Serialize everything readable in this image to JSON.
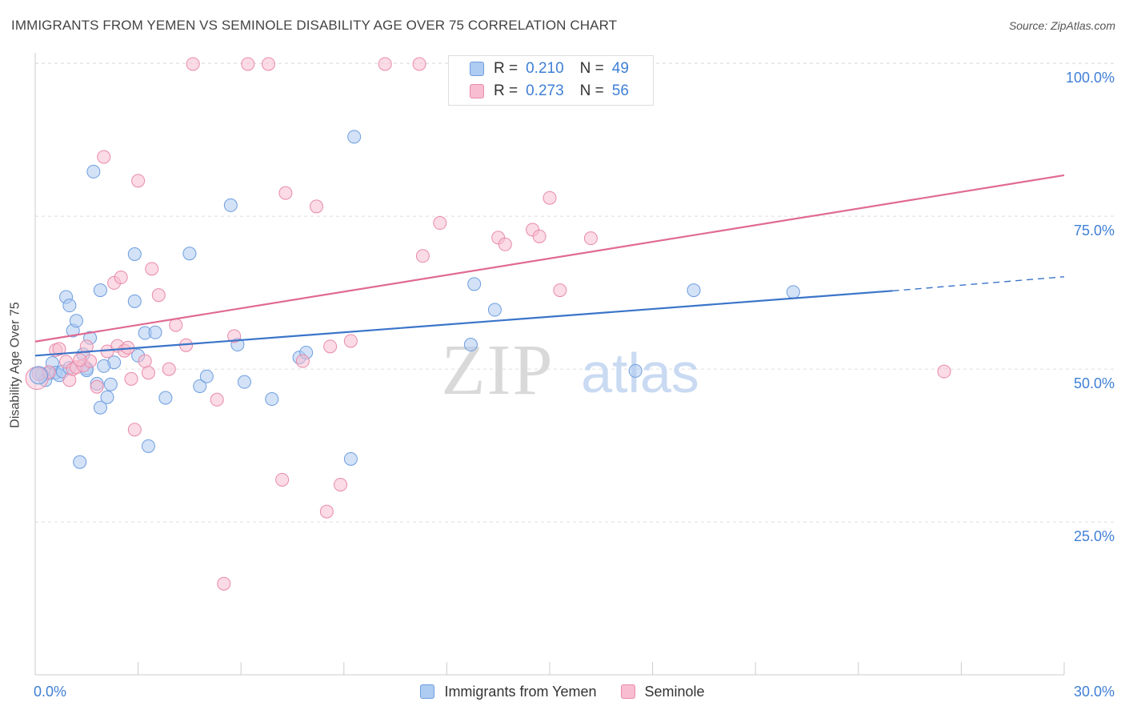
{
  "title": "IMMIGRANTS FROM YEMEN VS SEMINOLE DISABILITY AGE OVER 75 CORRELATION CHART",
  "source": "Source: ZipAtlas.com",
  "watermark": {
    "zip": "ZIP",
    "atlas": "atlas"
  },
  "legend": {
    "r_label": "R =",
    "n_label": "N =",
    "rows": [
      {
        "r": "0.210",
        "n": "49",
        "fill": "#aecbf1",
        "stroke": "#6d9de0"
      },
      {
        "r": "0.273",
        "n": "56",
        "fill": "#f8bdd0",
        "stroke": "#e88aaa"
      }
    ]
  },
  "colors": {
    "blue_line": "#3a74c9",
    "pink_line": "#e06a93",
    "tick_text": "#3f7fd6",
    "grid": "#dddddd"
  },
  "chart_data": {
    "type": "scatter",
    "title": "IMMIGRANTS FROM YEMEN VS SEMINOLE DISABILITY AGE OVER 75 CORRELATION CHART",
    "xlabel": "",
    "ylabel": "Disability Age Over 75",
    "xlim": [
      0,
      30
    ],
    "ylim": [
      0,
      105
    ],
    "x_ticks": [
      "0.0%",
      "30.0%"
    ],
    "y_ticks": [
      {
        "value": 25,
        "label": "25.0%"
      },
      {
        "value": 50,
        "label": "50.0%"
      },
      {
        "value": 75,
        "label": "75.0%"
      },
      {
        "value": 100,
        "label": "100.0%"
      }
    ],
    "grid": true,
    "legend_position": "bottom",
    "series": [
      {
        "name": "Immigrants from Yemen",
        "color": "#6d9de0",
        "fill": "#aecbf1",
        "trend": {
          "x_start": 0.0,
          "y_start": 52.2,
          "x_end": 25.0,
          "y_end": 62.8,
          "dashed_to_x": 30.0,
          "dashed_to_y": 65.1
        },
        "points": [
          [
            0.2,
            49.2
          ],
          [
            0.4,
            49.3
          ],
          [
            0.5,
            51.0
          ],
          [
            0.6,
            49.4
          ],
          [
            0.7,
            49.0
          ],
          [
            0.9,
            61.8
          ],
          [
            1.0,
            60.4
          ],
          [
            1.1,
            56.3
          ],
          [
            1.2,
            57.9
          ],
          [
            1.3,
            34.8
          ],
          [
            1.4,
            52.4
          ],
          [
            1.5,
            50.1
          ],
          [
            1.6,
            55.1
          ],
          [
            1.7,
            82.3
          ],
          [
            1.8,
            47.6
          ],
          [
            1.9,
            43.7
          ],
          [
            1.9,
            62.9
          ],
          [
            2.1,
            45.4
          ],
          [
            2.2,
            47.5
          ],
          [
            2.3,
            51.1
          ],
          [
            2.9,
            61.1
          ],
          [
            2.9,
            68.8
          ],
          [
            3.0,
            52.2
          ],
          [
            3.2,
            55.9
          ],
          [
            3.3,
            37.4
          ],
          [
            3.8,
            45.3
          ],
          [
            4.5,
            68.9
          ],
          [
            4.8,
            47.2
          ],
          [
            5.0,
            48.8
          ],
          [
            5.7,
            76.8
          ],
          [
            5.9,
            54.0
          ],
          [
            6.1,
            47.9
          ],
          [
            6.9,
            45.1
          ],
          [
            7.7,
            51.9
          ],
          [
            7.9,
            52.7
          ],
          [
            9.2,
            35.3
          ],
          [
            9.3,
            88.0
          ],
          [
            12.7,
            54.0
          ],
          [
            12.8,
            63.9
          ],
          [
            13.4,
            59.7
          ],
          [
            17.5,
            49.7
          ],
          [
            19.2,
            62.9
          ],
          [
            22.1,
            62.6
          ],
          [
            0.3,
            48.2
          ],
          [
            0.8,
            49.6
          ],
          [
            1.0,
            50.2
          ],
          [
            1.5,
            49.8
          ],
          [
            2.0,
            50.5
          ],
          [
            3.5,
            56.0
          ]
        ]
      },
      {
        "name": "Seminole",
        "color": "#e88aaa",
        "fill": "#f8bdd0",
        "trend": {
          "x_start": 0.0,
          "y_start": 54.5,
          "x_end": 30.0,
          "y_end": 81.7
        },
        "points": [
          [
            0.1,
            49.2
          ],
          [
            0.6,
            53.1
          ],
          [
            0.7,
            53.3
          ],
          [
            0.9,
            51.2
          ],
          [
            1.0,
            48.2
          ],
          [
            1.1,
            50.0
          ],
          [
            1.2,
            50.3
          ],
          [
            1.4,
            50.6
          ],
          [
            1.5,
            53.7
          ],
          [
            1.6,
            51.3
          ],
          [
            1.8,
            47.1
          ],
          [
            2.0,
            84.7
          ],
          [
            2.1,
            52.9
          ],
          [
            2.3,
            64.1
          ],
          [
            2.4,
            53.8
          ],
          [
            2.5,
            65.0
          ],
          [
            2.6,
            53.0
          ],
          [
            2.8,
            48.4
          ],
          [
            2.9,
            40.1
          ],
          [
            3.0,
            80.8
          ],
          [
            3.2,
            51.3
          ],
          [
            3.3,
            49.4
          ],
          [
            3.4,
            66.4
          ],
          [
            3.6,
            62.1
          ],
          [
            3.9,
            50.0
          ],
          [
            4.1,
            57.2
          ],
          [
            4.4,
            53.9
          ],
          [
            4.6,
            99.9
          ],
          [
            5.3,
            45.0
          ],
          [
            5.5,
            14.9
          ],
          [
            5.8,
            55.4
          ],
          [
            6.2,
            99.9
          ],
          [
            6.8,
            99.9
          ],
          [
            7.2,
            31.9
          ],
          [
            7.3,
            78.8
          ],
          [
            7.8,
            51.3
          ],
          [
            8.2,
            76.6
          ],
          [
            8.5,
            26.7
          ],
          [
            8.6,
            53.7
          ],
          [
            8.9,
            31.1
          ],
          [
            9.2,
            54.6
          ],
          [
            10.2,
            99.9
          ],
          [
            11.2,
            99.9
          ],
          [
            11.3,
            68.5
          ],
          [
            11.8,
            73.9
          ],
          [
            13.5,
            71.5
          ],
          [
            13.7,
            70.4
          ],
          [
            14.5,
            72.8
          ],
          [
            14.7,
            71.7
          ],
          [
            15.0,
            78.0
          ],
          [
            15.3,
            62.9
          ],
          [
            16.2,
            71.4
          ],
          [
            26.5,
            49.6
          ],
          [
            1.3,
            51.5
          ],
          [
            2.7,
            53.5
          ],
          [
            0.4,
            49.5
          ]
        ]
      }
    ]
  }
}
